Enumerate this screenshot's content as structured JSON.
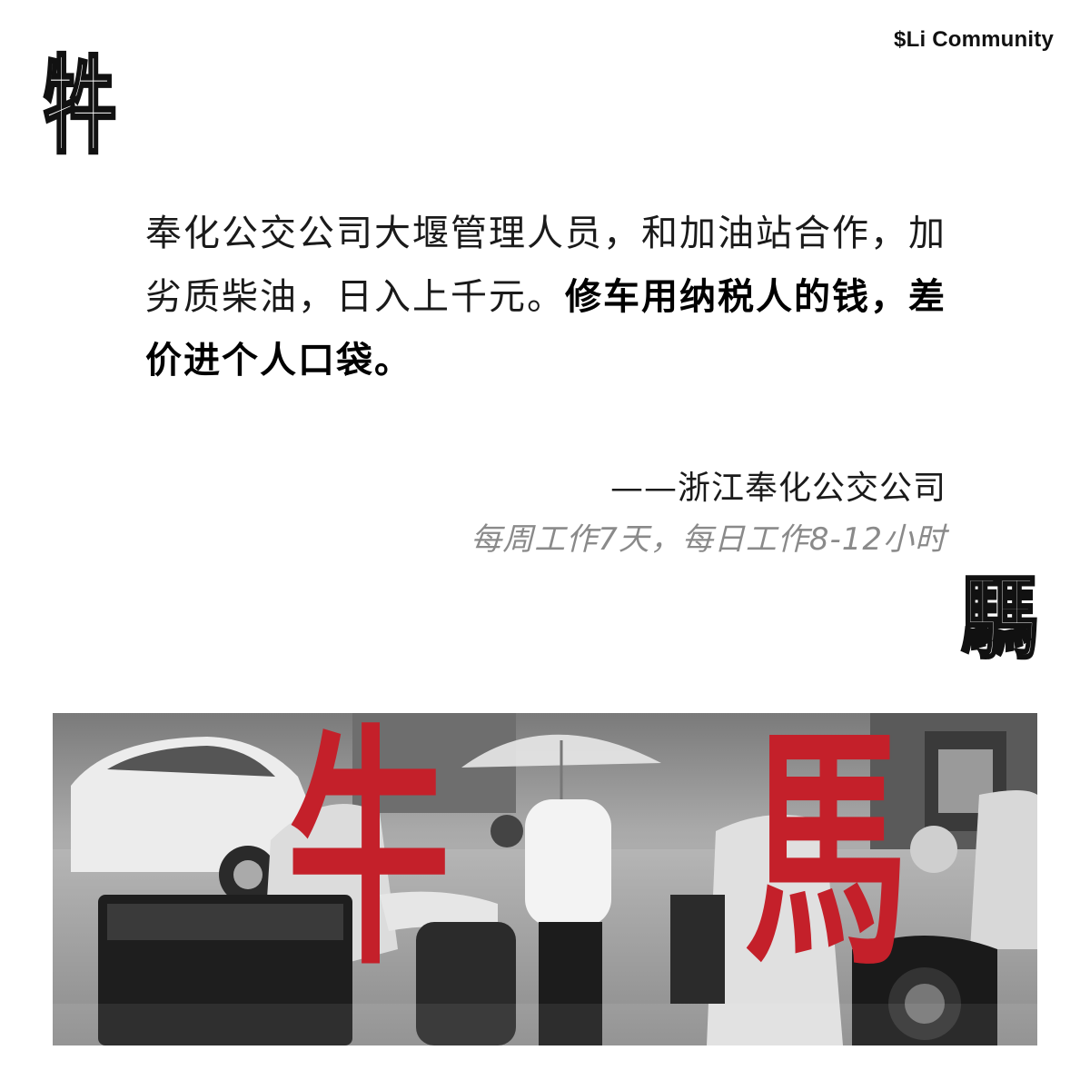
{
  "brand": "$Li Community",
  "deco_top_char": "牪",
  "deco_bottom_char": "騳",
  "quote": {
    "regular": "奉化公交公司大堰管理人员，和加油站合作，加劣质柴油，日入上千元。",
    "bold": "修车用纳税人的钱，差价进个人口袋。"
  },
  "attribution": "——浙江奉化公交公司",
  "hours": "每周工作7天，每日工作8-12小时",
  "photo": {
    "ox_char": "牛",
    "horse_char": "馬",
    "accent_color": "#c4202a"
  }
}
